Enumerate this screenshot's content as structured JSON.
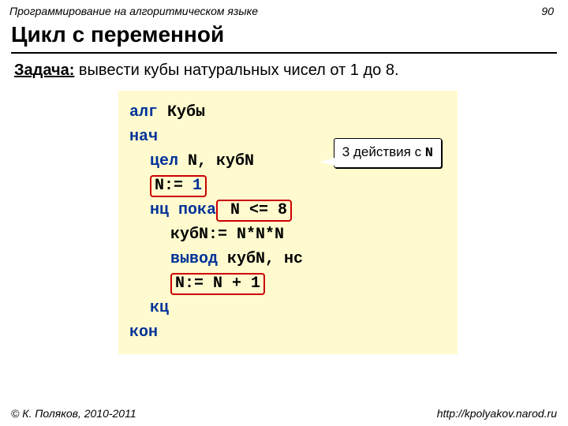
{
  "header": {
    "left": "Программирование на алгоритмическом языке",
    "page": "90"
  },
  "title": "Цикл с переменной",
  "task": {
    "label": "Задача:",
    "text": " вывести кубы натуральных чисел от 1 до 8."
  },
  "code": {
    "l1_kw": "алг",
    "l1_name": " Кубы",
    "l2": "нач",
    "l3_kw": "цел",
    "l3_rest": " N, кубN",
    "l4_pre": "N:= ",
    "l4_box": "1",
    "l5_kw": "нц пока",
    "l5_box": " N <= 8",
    "l6": "кубN:= N*N*N",
    "l7_kw": "вывод",
    "l7_rest": " кубN, нс",
    "l8_box": "N:= N + 1",
    "l9": "кц",
    "l10": "кон"
  },
  "callout": {
    "pre": "3 действия с ",
    "mono": "N"
  },
  "footer": {
    "left": "© К. Поляков, 2010-2011",
    "right": "http://kpolyakov.narod.ru"
  },
  "colors": {
    "code_bg": "#fffbcf",
    "box_border": "#cc0000",
    "kw_blue": "#003399"
  }
}
